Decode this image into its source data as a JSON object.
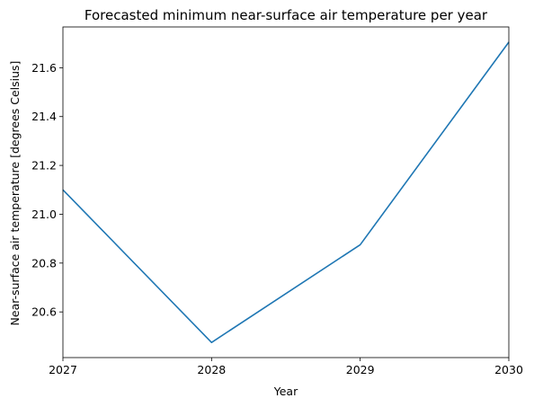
{
  "chart_data": {
    "type": "line",
    "title": "Forecasted minimum near-surface air temperature per year",
    "xlabel": "Year",
    "ylabel": "Near-surface air temperature [degrees Celsius]",
    "x": [
      2027,
      2028,
      2029,
      2030
    ],
    "series": [
      {
        "values": [
          21.1,
          20.475,
          20.875,
          21.705
        ],
        "color": "#1f77b4"
      }
    ],
    "xlim": [
      2027,
      2030
    ],
    "ylim": [
      20.413,
      21.767
    ],
    "xticks": [
      2027,
      2028,
      2029,
      2030
    ],
    "yticks": [
      20.6,
      20.8,
      21.0,
      21.2,
      21.4,
      21.6
    ],
    "ytick_labels": [
      "20.6",
      "20.8",
      "21.0",
      "21.2",
      "21.4",
      "21.6"
    ],
    "grid": false,
    "legend": "none"
  }
}
